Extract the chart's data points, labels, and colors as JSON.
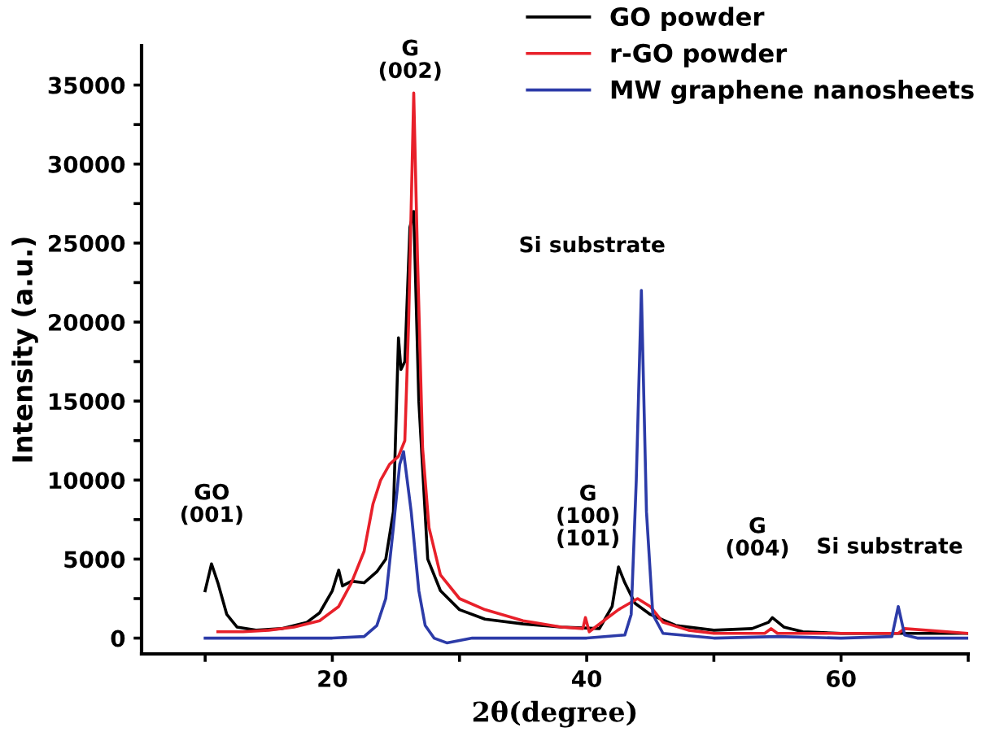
{
  "chart_data": {
    "type": "line",
    "xlabel": "2θ(degree)",
    "ylabel": "Intensity (a.u.)",
    "xlim": [
      5,
      70
    ],
    "ylim": [
      -1000,
      37500
    ],
    "xticks": [
      {
        "value": 10,
        "label": null
      },
      20,
      {
        "value": 30,
        "label": null
      },
      40,
      {
        "value": 50,
        "label": null
      },
      60,
      {
        "value": 70,
        "label": null
      }
    ],
    "yticks": [
      0,
      {
        "value": 2500,
        "label": null
      },
      5000,
      {
        "value": 7500,
        "label": null
      },
      10000,
      {
        "value": 12500,
        "label": null
      },
      15000,
      {
        "value": 17500,
        "label": null
      },
      20000,
      {
        "value": 22500,
        "label": null
      },
      25000,
      {
        "value": 27500,
        "label": null
      },
      30000,
      {
        "value": 32500,
        "label": null
      },
      35000
    ],
    "legend": "top right",
    "grid": false,
    "series": [
      {
        "name": "GO powder",
        "color": "#000000",
        "x": [
          10,
          10.5,
          11,
          11.7,
          12.5,
          14,
          16,
          18,
          19,
          20,
          20.5,
          20.8,
          21.5,
          22.5,
          23.5,
          24.2,
          24.8,
          25.2,
          25.4,
          25.7,
          26.1,
          26.4,
          26.8,
          27.5,
          28.5,
          30,
          32,
          35,
          38,
          41,
          42,
          42.5,
          43,
          43.8,
          45,
          47,
          50,
          53,
          54.3,
          54.6,
          55.5,
          57,
          60,
          65,
          70
        ],
        "values": [
          3000,
          4700,
          3500,
          1500,
          700,
          500,
          600,
          1000,
          1600,
          3000,
          4300,
          3300,
          3600,
          3500,
          4200,
          5000,
          8000,
          19000,
          17000,
          17500,
          26000,
          27000,
          15000,
          5000,
          3000,
          1800,
          1200,
          900,
          700,
          600,
          2000,
          4500,
          3500,
          2200,
          1500,
          800,
          500,
          600,
          1000,
          1300,
          700,
          400,
          300,
          300,
          300
        ]
      },
      {
        "name": "r-GO powder",
        "color": "#e8202a",
        "x": [
          11,
          13,
          15,
          17,
          19,
          20.5,
          21.5,
          22.5,
          23.2,
          23.8,
          24.5,
          25.2,
          25.7,
          26.0,
          26.4,
          26.7,
          27.1,
          27.6,
          28.5,
          30,
          32,
          35,
          38,
          39.7,
          39.9,
          40.2,
          41.5,
          42.5,
          44,
          45,
          46,
          48,
          50,
          54,
          54.5,
          55,
          60,
          64.5,
          65,
          70
        ],
        "values": [
          400,
          400,
          500,
          700,
          1100,
          2000,
          3500,
          5500,
          8500,
          10000,
          11000,
          11500,
          12500,
          20000,
          34500,
          24000,
          12000,
          7000,
          4000,
          2500,
          1800,
          1100,
          700,
          600,
          1300,
          400,
          1200,
          1800,
          2500,
          2000,
          1000,
          500,
          300,
          300,
          600,
          300,
          300,
          300,
          600,
          300
        ]
      },
      {
        "name": "MW graphene nanosheets",
        "color": "#2c3ba8",
        "x": [
          10,
          15,
          20,
          22.5,
          23.5,
          24.2,
          24.8,
          25.3,
          25.6,
          26.2,
          26.8,
          27.3,
          28,
          29,
          31,
          35,
          40,
          43,
          43.5,
          43.9,
          44.3,
          44.7,
          45.2,
          46,
          50,
          55,
          60,
          64,
          64.5,
          65,
          66,
          70
        ],
        "values": [
          0,
          0,
          0,
          100,
          800,
          2500,
          7000,
          11000,
          11800,
          8000,
          3000,
          800,
          0,
          -300,
          0,
          0,
          0,
          200,
          1500,
          10000,
          22000,
          8000,
          1500,
          300,
          0,
          100,
          0,
          100,
          2000,
          200,
          0,
          0
        ]
      }
    ],
    "annotations": [
      "GO\n(001)",
      "G\n(002)",
      "Si substrate",
      "G\n(100)\n(101)",
      "G\n(004)",
      "Si substrate"
    ]
  }
}
